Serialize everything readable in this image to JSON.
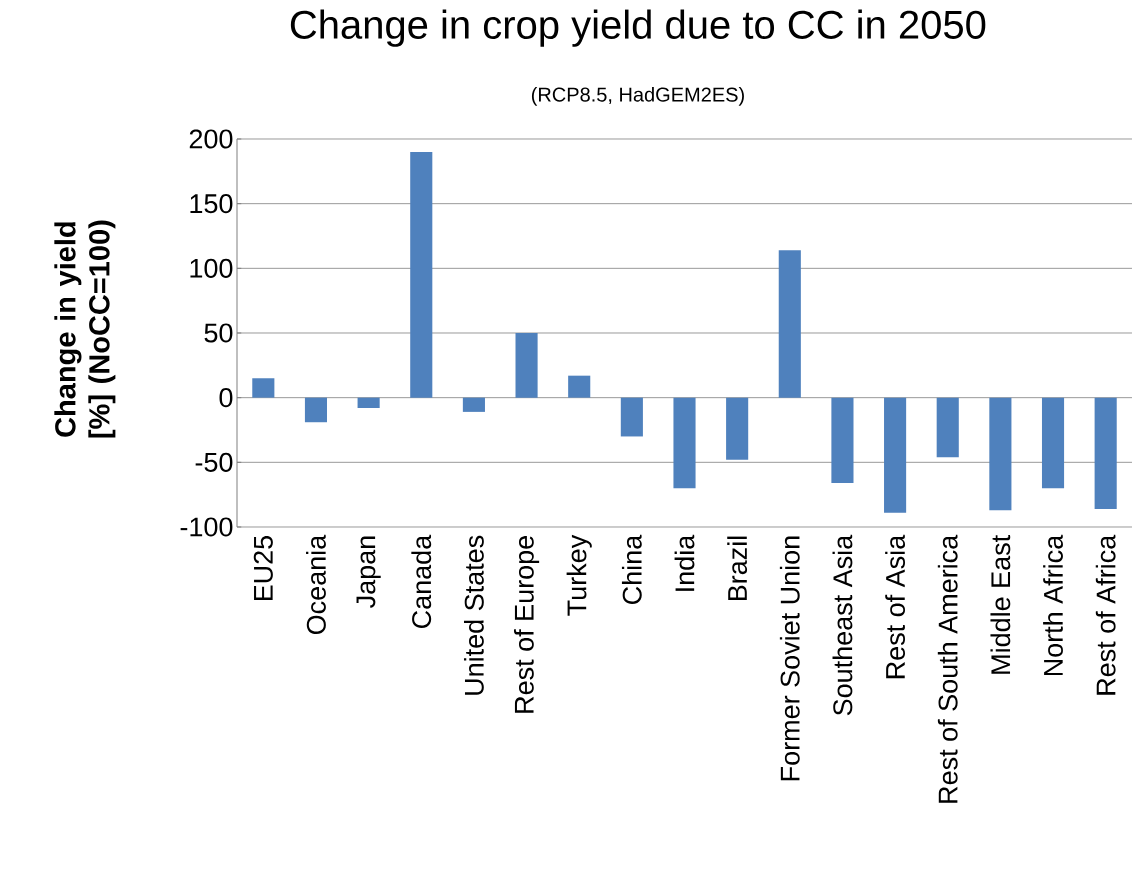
{
  "chart_data": {
    "type": "bar",
    "title": "Change in crop yield due to CC in 2050",
    "subtitle": "(RCP8.5, HadGEM2ES)",
    "ylabel": "Change in yield [%] (NoCC=100)",
    "categories": [
      "EU25",
      "Oceania",
      "Japan",
      "Canada",
      "United States",
      "Rest of Europe",
      "Turkey",
      "China",
      "India",
      "Brazil",
      "Former Soviet Union",
      "Southeast Asia",
      "Rest of Asia",
      "Rest of South America",
      "Middle East",
      "North Africa",
      "Rest of Africa"
    ],
    "values": [
      15,
      -19,
      -8,
      190,
      -11,
      50,
      17,
      -30,
      -70,
      -48,
      114,
      -66,
      -89,
      -46,
      -87,
      -70,
      -86
    ],
    "color": "#4f81bd",
    "ylim": [
      -100,
      200
    ],
    "yticks": [
      -100,
      -50,
      0,
      50,
      100,
      150,
      200
    ],
    "grid": "y"
  }
}
